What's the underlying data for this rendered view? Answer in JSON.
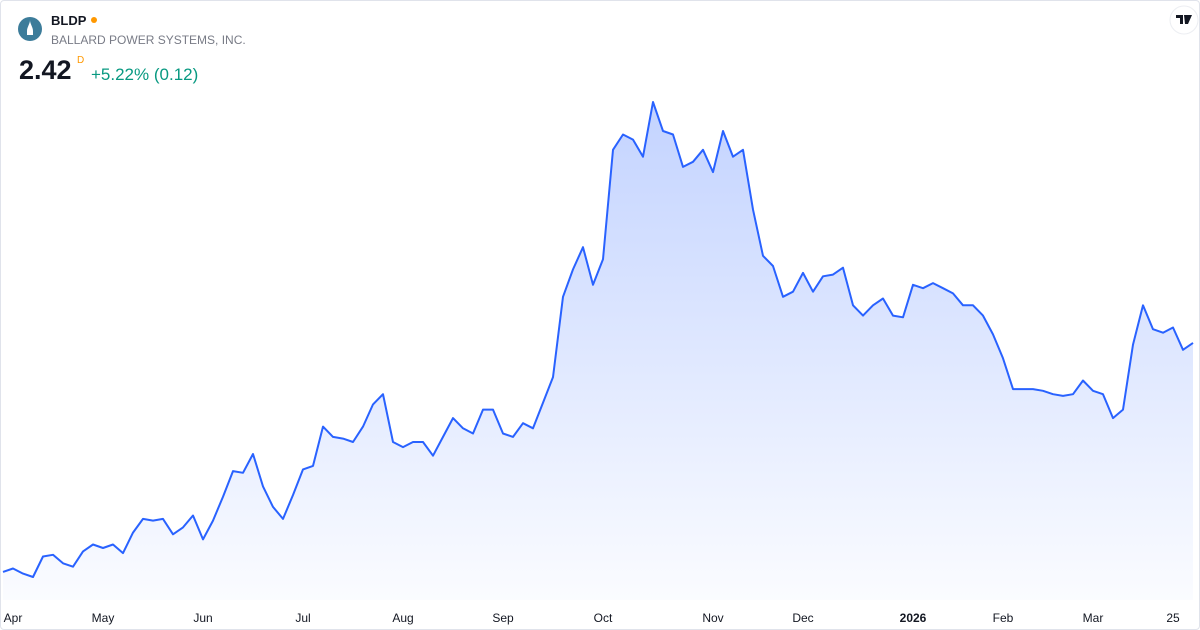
{
  "header": {
    "symbol": "BLDP",
    "company": "BALLARD POWER SYSTEMS, INC.",
    "price": 2.42,
    "interval": "D",
    "change": "+5.22% (0.12)"
  },
  "chart_data": {
    "type": "area",
    "color": "#2962ff",
    "categories": [
      null,
      "Apr",
      null,
      null,
      null,
      null,
      null,
      null,
      null,
      null,
      "May",
      null,
      null,
      null,
      null,
      null,
      null,
      null,
      null,
      null,
      "Jun",
      null,
      null,
      null,
      null,
      null,
      null,
      null,
      null,
      null,
      "Jul",
      null,
      null,
      null,
      null,
      null,
      null,
      null,
      null,
      null,
      "Aug",
      null,
      null,
      null,
      null,
      null,
      null,
      null,
      null,
      null,
      "Sep",
      null,
      null,
      null,
      null,
      null,
      null,
      null,
      null,
      null,
      "Oct",
      null,
      null,
      null,
      null,
      null,
      null,
      null,
      null,
      null,
      null,
      "Nov",
      null,
      null,
      null,
      null,
      null,
      null,
      null,
      null,
      "Dec",
      null,
      null,
      null,
      null,
      null,
      null,
      null,
      null,
      null,
      null,
      "2026",
      null,
      null,
      null,
      null,
      null,
      null,
      null,
      null,
      "Feb",
      null,
      null,
      null,
      null,
      null,
      null,
      null,
      null,
      "Mar",
      null,
      null,
      null,
      null,
      null,
      null,
      null,
      "25",
      null,
      null
    ],
    "values": [
      1.08,
      1.1,
      1.07,
      1.05,
      1.17,
      1.18,
      1.13,
      1.11,
      1.2,
      1.24,
      1.22,
      1.24,
      1.19,
      1.31,
      1.39,
      1.38,
      1.39,
      1.3,
      1.34,
      1.41,
      1.27,
      1.38,
      1.52,
      1.67,
      1.66,
      1.77,
      1.58,
      1.46,
      1.39,
      1.53,
      1.68,
      1.7,
      1.93,
      1.87,
      1.86,
      1.84,
      1.93,
      2.06,
      2.12,
      1.84,
      1.81,
      1.84,
      1.84,
      1.76,
      1.87,
      1.98,
      1.92,
      1.89,
      2.03,
      2.03,
      1.89,
      1.87,
      1.95,
      1.92,
      2.07,
      2.22,
      2.69,
      2.85,
      2.98,
      2.76,
      2.91,
      3.55,
      3.64,
      3.61,
      3.51,
      3.83,
      3.66,
      3.64,
      3.45,
      3.48,
      3.55,
      3.42,
      3.66,
      3.51,
      3.55,
      3.2,
      2.93,
      2.87,
      2.69,
      2.72,
      2.83,
      2.72,
      2.81,
      2.82,
      2.86,
      2.64,
      2.58,
      2.64,
      2.68,
      2.58,
      2.57,
      2.76,
      2.74,
      2.77,
      2.74,
      2.71,
      2.64,
      2.64,
      2.58,
      2.47,
      2.33,
      2.15,
      2.15,
      2.15,
      2.14,
      2.12,
      2.11,
      2.12,
      2.2,
      2.14,
      2.12,
      1.98,
      2.03,
      2.41,
      2.64,
      2.5,
      2.48,
      2.51,
      2.38,
      2.42
    ]
  }
}
